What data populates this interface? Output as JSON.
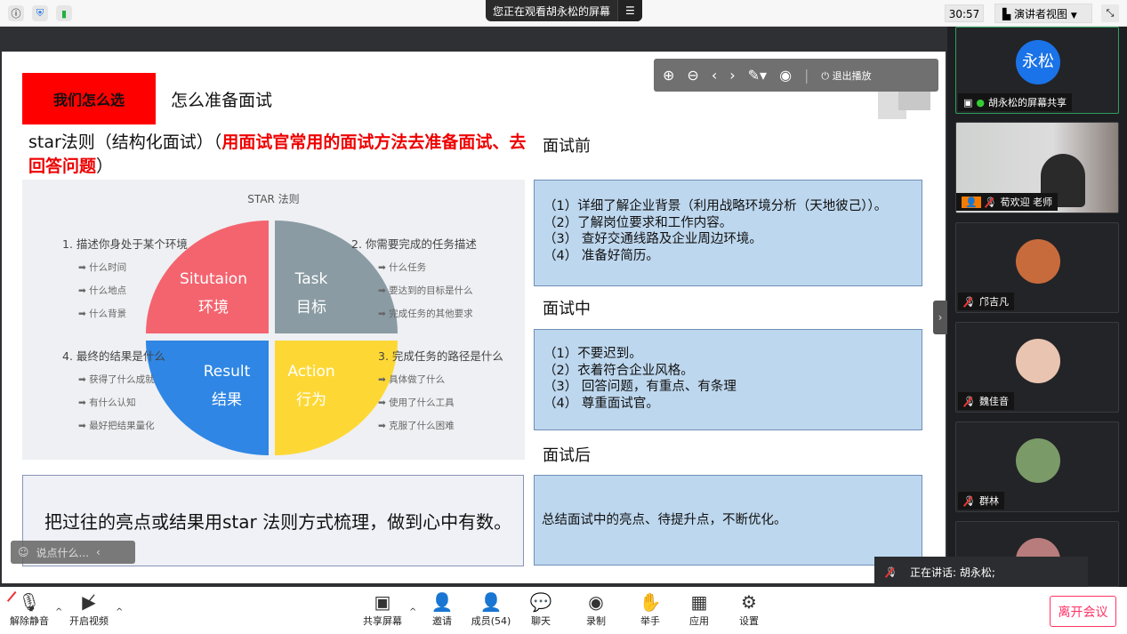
{
  "topbar": {
    "viewing_text": "您正在观看胡永松的屏幕",
    "timer": "30:57",
    "view_mode": "演讲者视图",
    "icons": [
      "info-icon",
      "shield-icon",
      "signal-icon"
    ]
  },
  "slide": {
    "red_label": "我们怎么选",
    "title": "怎么准备面试",
    "star_prefix": "star法则（结构化面试）（",
    "star_red": "用面试官常用的面试方法去准备面试、去回答问题",
    "star_suffix": "）",
    "diagram": {
      "title": "STAR 法则",
      "quadrants": [
        {
          "en": "Situtaion",
          "zh": "环境",
          "color": "#f4646f"
        },
        {
          "en": "Task",
          "zh": "目标",
          "color": "#8a9ba3"
        },
        {
          "en": "Result",
          "zh": "结果",
          "color": "#2f86e4"
        },
        {
          "en": "Action",
          "zh": "行为",
          "color": "#fdd835"
        }
      ],
      "groups": [
        {
          "heading": "1. 描述你身处于某个环境",
          "items": [
            "什么时间",
            "什么地点",
            "什么背景"
          ]
        },
        {
          "heading": "2. 你需要完成的任务描述",
          "items": [
            "什么任务",
            "要达到的目标是什么",
            "完成任务的其他要求"
          ]
        },
        {
          "heading": "4. 最终的结果是什么",
          "items": [
            "获得了什么成就",
            "有什么认知",
            "最好把结果量化"
          ]
        },
        {
          "heading": "3. 完成任务的路径是什么",
          "items": [
            "具体做了什么",
            "使用了什么工具",
            "克服了什么困难"
          ]
        }
      ]
    },
    "bottom_left": "把过往的亮点或结果用star 法则方式梳理，做到心中有数。",
    "before": {
      "heading": "面试前",
      "lines": [
        "（1）详细了解企业背景（利用战略环境分析（天地彼己））。",
        "（2）了解岗位要求和工作内容。",
        "（3） 查好交通线路及企业周边环境。",
        "（4） 准备好简历。"
      ]
    },
    "during": {
      "heading": "面试中",
      "lines": [
        "（1）不要迟到。",
        "（2）衣着符合企业风格。",
        "（3） 回答问题，有重点、有条理",
        "（4） 尊重面试官。"
      ]
    },
    "after": {
      "heading": "面试后",
      "text": "总结面试中的亮点、待提升点，不断优化。"
    }
  },
  "controls": {
    "exit_label": "退出播放"
  },
  "chat": {
    "placeholder": "说点什么..."
  },
  "participants": [
    {
      "name": "胡永松的屏幕共享",
      "avatar_text": "永松"
    },
    {
      "name": "荀欢迎 老师"
    },
    {
      "name": "邝吉凡"
    },
    {
      "name": "魏佳音"
    },
    {
      "name": "群林"
    }
  ],
  "speaking": "正在讲话: 胡永松;",
  "toolbar": {
    "unmute": "解除静音",
    "video": "开启视频",
    "share": "共享屏幕",
    "invite": "邀请",
    "members": "成员(54)",
    "chat": "聊天",
    "record": "录制",
    "raise": "举手",
    "apps": "应用",
    "settings": "设置",
    "leave": "离开会议"
  }
}
